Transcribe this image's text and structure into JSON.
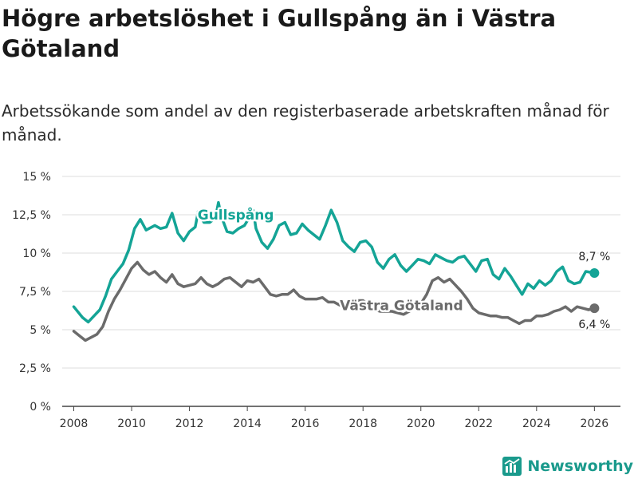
{
  "title": "Högre arbetslöshet i Gullspång än i Västra Götaland",
  "subtitle": "Arbetssökande som andel av den registerbaserade arbetskraften månad för månad.",
  "brand": "Newsworthy",
  "colors": {
    "gullspang": "#14a496",
    "vastra": "#6b6b6b",
    "grid": "#dddddd",
    "axis": "#444444"
  },
  "chart_data": {
    "type": "line",
    "title": "Högre arbetslöshet i Gullspång än i Västra Götaland",
    "subtitle": "Arbetssökande som andel av den registerbaserade arbetskraften månad för månad.",
    "xlabel": "",
    "ylabel": "",
    "xlim": [
      2007.6,
      2026.9
    ],
    "ylim": [
      0,
      15
    ],
    "grid": true,
    "x_ticks": [
      2008,
      2010,
      2012,
      2014,
      2016,
      2018,
      2020,
      2022,
      2024,
      2026
    ],
    "x_tick_labels": [
      "2008",
      "2010",
      "2012",
      "2014",
      "2016",
      "2018",
      "2020",
      "2022",
      "2024",
      "2026"
    ],
    "y_ticks": [
      0,
      2.5,
      5,
      7.5,
      10,
      12.5,
      15
    ],
    "y_tick_labels": [
      "0 %",
      "2,5 %",
      "5 %",
      "7,5 %",
      "10 %",
      "12,5 %",
      "15 %"
    ],
    "series": [
      {
        "name": "Gullspång",
        "label_position": "top-center",
        "end_label": "8,7 %",
        "points": [
          [
            2008.0,
            6.5
          ],
          [
            2008.3,
            5.8
          ],
          [
            2008.5,
            5.5
          ],
          [
            2008.7,
            5.9
          ],
          [
            2008.9,
            6.3
          ],
          [
            2009.1,
            7.2
          ],
          [
            2009.3,
            8.3
          ],
          [
            2009.5,
            8.8
          ],
          [
            2009.7,
            9.3
          ],
          [
            2009.9,
            10.2
          ],
          [
            2010.1,
            11.6
          ],
          [
            2010.3,
            12.2
          ],
          [
            2010.5,
            11.5
          ],
          [
            2010.8,
            11.8
          ],
          [
            2011.0,
            11.6
          ],
          [
            2011.2,
            11.7
          ],
          [
            2011.4,
            12.6
          ],
          [
            2011.6,
            11.3
          ],
          [
            2011.8,
            10.8
          ],
          [
            2012.0,
            11.4
          ],
          [
            2012.2,
            11.7
          ],
          [
            2012.3,
            12.7
          ],
          [
            2012.5,
            12.0
          ],
          [
            2012.7,
            12.0
          ],
          [
            2012.9,
            12.3
          ],
          [
            2013.0,
            13.3
          ],
          [
            2013.1,
            12.4
          ],
          [
            2013.3,
            11.4
          ],
          [
            2013.5,
            11.3
          ],
          [
            2013.7,
            11.6
          ],
          [
            2013.9,
            11.8
          ],
          [
            2014.0,
            12.1
          ],
          [
            2014.2,
            12.8
          ],
          [
            2014.3,
            11.6
          ],
          [
            2014.5,
            10.7
          ],
          [
            2014.7,
            10.3
          ],
          [
            2014.9,
            10.9
          ],
          [
            2015.1,
            11.8
          ],
          [
            2015.3,
            12.0
          ],
          [
            2015.5,
            11.2
          ],
          [
            2015.7,
            11.3
          ],
          [
            2015.9,
            11.9
          ],
          [
            2016.1,
            11.5
          ],
          [
            2016.3,
            11.2
          ],
          [
            2016.5,
            10.9
          ],
          [
            2016.7,
            11.8
          ],
          [
            2016.9,
            12.8
          ],
          [
            2017.1,
            12.0
          ],
          [
            2017.3,
            10.8
          ],
          [
            2017.5,
            10.4
          ],
          [
            2017.7,
            10.1
          ],
          [
            2017.9,
            10.7
          ],
          [
            2018.1,
            10.8
          ],
          [
            2018.3,
            10.4
          ],
          [
            2018.5,
            9.4
          ],
          [
            2018.7,
            9.0
          ],
          [
            2018.9,
            9.6
          ],
          [
            2019.1,
            9.9
          ],
          [
            2019.3,
            9.2
          ],
          [
            2019.5,
            8.8
          ],
          [
            2019.7,
            9.2
          ],
          [
            2019.9,
            9.6
          ],
          [
            2020.1,
            9.5
          ],
          [
            2020.3,
            9.3
          ],
          [
            2020.5,
            9.9
          ],
          [
            2020.7,
            9.7
          ],
          [
            2020.9,
            9.5
          ],
          [
            2021.1,
            9.4
          ],
          [
            2021.3,
            9.7
          ],
          [
            2021.5,
            9.8
          ],
          [
            2021.7,
            9.3
          ],
          [
            2021.9,
            8.8
          ],
          [
            2022.1,
            9.5
          ],
          [
            2022.3,
            9.6
          ],
          [
            2022.5,
            8.6
          ],
          [
            2022.7,
            8.3
          ],
          [
            2022.9,
            9.0
          ],
          [
            2023.1,
            8.5
          ],
          [
            2023.3,
            7.9
          ],
          [
            2023.5,
            7.3
          ],
          [
            2023.7,
            8.0
          ],
          [
            2023.9,
            7.7
          ],
          [
            2024.1,
            8.2
          ],
          [
            2024.3,
            7.9
          ],
          [
            2024.5,
            8.2
          ],
          [
            2024.7,
            8.8
          ],
          [
            2024.9,
            9.1
          ],
          [
            2025.1,
            8.2
          ],
          [
            2025.3,
            8.0
          ],
          [
            2025.5,
            8.1
          ],
          [
            2025.7,
            8.8
          ],
          [
            2026.0,
            8.7
          ]
        ]
      },
      {
        "name": "Västra Götaland",
        "label_position": "center-right",
        "end_label": "6,4 %",
        "points": [
          [
            2008.0,
            4.9
          ],
          [
            2008.2,
            4.6
          ],
          [
            2008.4,
            4.3
          ],
          [
            2008.6,
            4.5
          ],
          [
            2008.8,
            4.7
          ],
          [
            2009.0,
            5.2
          ],
          [
            2009.2,
            6.2
          ],
          [
            2009.4,
            7.0
          ],
          [
            2009.6,
            7.6
          ],
          [
            2009.8,
            8.3
          ],
          [
            2010.0,
            9.0
          ],
          [
            2010.2,
            9.4
          ],
          [
            2010.4,
            8.9
          ],
          [
            2010.6,
            8.6
          ],
          [
            2010.8,
            8.8
          ],
          [
            2011.0,
            8.4
          ],
          [
            2011.2,
            8.1
          ],
          [
            2011.4,
            8.6
          ],
          [
            2011.6,
            8.0
          ],
          [
            2011.8,
            7.8
          ],
          [
            2012.0,
            7.9
          ],
          [
            2012.2,
            8.0
          ],
          [
            2012.4,
            8.4
          ],
          [
            2012.6,
            8.0
          ],
          [
            2012.8,
            7.8
          ],
          [
            2013.0,
            8.0
          ],
          [
            2013.2,
            8.3
          ],
          [
            2013.4,
            8.4
          ],
          [
            2013.6,
            8.1
          ],
          [
            2013.8,
            7.8
          ],
          [
            2014.0,
            8.2
          ],
          [
            2014.2,
            8.1
          ],
          [
            2014.4,
            8.3
          ],
          [
            2014.6,
            7.8
          ],
          [
            2014.8,
            7.3
          ],
          [
            2015.0,
            7.2
          ],
          [
            2015.2,
            7.3
          ],
          [
            2015.4,
            7.3
          ],
          [
            2015.6,
            7.6
          ],
          [
            2015.8,
            7.2
          ],
          [
            2016.0,
            7.0
          ],
          [
            2016.2,
            7.0
          ],
          [
            2016.4,
            7.0
          ],
          [
            2016.6,
            7.1
          ],
          [
            2016.8,
            6.8
          ],
          [
            2017.0,
            6.8
          ],
          [
            2017.2,
            6.6
          ],
          [
            2017.4,
            6.6
          ],
          [
            2017.6,
            6.8
          ],
          [
            2017.8,
            6.9
          ],
          [
            2018.0,
            6.9
          ],
          [
            2018.2,
            6.6
          ],
          [
            2018.4,
            6.3
          ],
          [
            2018.6,
            6.2
          ],
          [
            2018.8,
            6.2
          ],
          [
            2019.0,
            6.2
          ],
          [
            2019.2,
            6.1
          ],
          [
            2019.4,
            6.0
          ],
          [
            2019.6,
            6.2
          ],
          [
            2019.8,
            6.4
          ],
          [
            2020.0,
            6.7
          ],
          [
            2020.2,
            7.3
          ],
          [
            2020.4,
            8.2
          ],
          [
            2020.6,
            8.4
          ],
          [
            2020.8,
            8.1
          ],
          [
            2021.0,
            8.3
          ],
          [
            2021.2,
            7.9
          ],
          [
            2021.4,
            7.5
          ],
          [
            2021.6,
            7.0
          ],
          [
            2021.8,
            6.4
          ],
          [
            2022.0,
            6.1
          ],
          [
            2022.2,
            6.0
          ],
          [
            2022.4,
            5.9
          ],
          [
            2022.6,
            5.9
          ],
          [
            2022.8,
            5.8
          ],
          [
            2023.0,
            5.8
          ],
          [
            2023.2,
            5.6
          ],
          [
            2023.4,
            5.4
          ],
          [
            2023.6,
            5.6
          ],
          [
            2023.8,
            5.6
          ],
          [
            2024.0,
            5.9
          ],
          [
            2024.2,
            5.9
          ],
          [
            2024.4,
            6.0
          ],
          [
            2024.6,
            6.2
          ],
          [
            2024.8,
            6.3
          ],
          [
            2025.0,
            6.5
          ],
          [
            2025.2,
            6.2
          ],
          [
            2025.4,
            6.5
          ],
          [
            2025.6,
            6.4
          ],
          [
            2025.8,
            6.3
          ],
          [
            2026.0,
            6.4
          ]
        ]
      }
    ]
  }
}
